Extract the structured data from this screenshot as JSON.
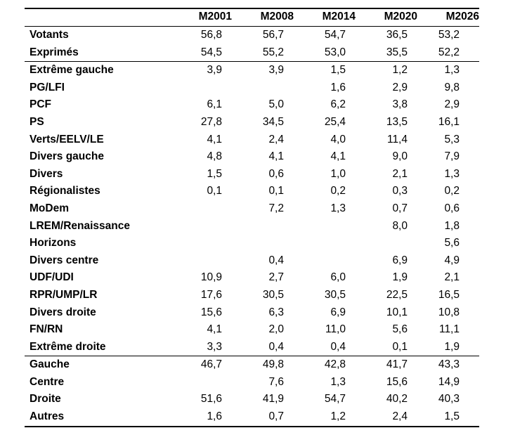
{
  "columns": [
    "",
    "M2001",
    "M2008",
    "M2014",
    "M2020",
    "M2026"
  ],
  "rows": [
    {
      "label": "Votants",
      "values": [
        "56,8",
        "56,7",
        "54,7",
        "36,5",
        "53,2"
      ]
    },
    {
      "label": "Exprimés",
      "values": [
        "54,5",
        "55,2",
        "53,0",
        "35,5",
        "52,2"
      ]
    },
    {
      "label": "Extrême gauche",
      "values": [
        "3,9",
        "3,9",
        "1,5",
        "1,2",
        "1,3"
      ]
    },
    {
      "label": "PG/LFI",
      "values": [
        "",
        "",
        "1,6",
        "2,9",
        "9,8"
      ]
    },
    {
      "label": "PCF",
      "values": [
        "6,1",
        "5,0",
        "6,2",
        "3,8",
        "2,9"
      ]
    },
    {
      "label": "PS",
      "values": [
        "27,8",
        "34,5",
        "25,4",
        "13,5",
        "16,1"
      ]
    },
    {
      "label": "Verts/EELV/LE",
      "values": [
        "4,1",
        "2,4",
        "4,0",
        "11,4",
        "5,3"
      ]
    },
    {
      "label": "Divers gauche",
      "values": [
        "4,8",
        "4,1",
        "4,1",
        "9,0",
        "7,9"
      ]
    },
    {
      "label": "Divers",
      "values": [
        "1,5",
        "0,6",
        "1,0",
        "2,1",
        "1,3"
      ]
    },
    {
      "label": "Régionalistes",
      "values": [
        "0,1",
        "0,1",
        "0,2",
        "0,3",
        "0,2"
      ]
    },
    {
      "label": "MoDem",
      "values": [
        "",
        "7,2",
        "1,3",
        "0,7",
        "0,6"
      ]
    },
    {
      "label": "LREM/Renaissance",
      "values": [
        "",
        "",
        "",
        "8,0",
        "1,8"
      ]
    },
    {
      "label": "Horizons",
      "values": [
        "",
        "",
        "",
        "",
        "5,6"
      ]
    },
    {
      "label": "Divers centre",
      "values": [
        "",
        "0,4",
        "",
        "6,9",
        "4,9"
      ]
    },
    {
      "label": "UDF/UDI",
      "values": [
        "10,9",
        "2,7",
        "6,0",
        "1,9",
        "2,1"
      ]
    },
    {
      "label": "RPR/UMP/LR",
      "values": [
        "17,6",
        "30,5",
        "30,5",
        "22,5",
        "16,5"
      ]
    },
    {
      "label": "Divers droite",
      "values": [
        "15,6",
        "6,3",
        "6,9",
        "10,1",
        "10,8"
      ]
    },
    {
      "label": "FN/RN",
      "values": [
        "4,1",
        "2,0",
        "11,0",
        "5,6",
        "11,1"
      ]
    },
    {
      "label": "Extrême droite",
      "values": [
        "3,3",
        "0,4",
        "0,4",
        "0,1",
        "1,9"
      ]
    },
    {
      "label": "Gauche",
      "values": [
        "46,7",
        "49,8",
        "42,8",
        "41,7",
        "43,3"
      ]
    },
    {
      "label": "Centre",
      "values": [
        "",
        "7,6",
        "1,3",
        "15,6",
        "14,9"
      ]
    },
    {
      "label": "Droite",
      "values": [
        "51,6",
        "41,9",
        "54,7",
        "40,2",
        "40,3"
      ]
    },
    {
      "label": "Autres",
      "values": [
        "1,6",
        "0,7",
        "1,2",
        "2,4",
        "1,5"
      ]
    }
  ]
}
